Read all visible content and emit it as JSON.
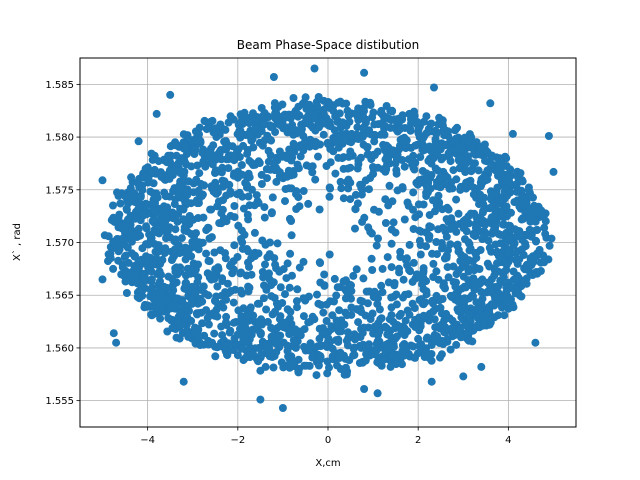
{
  "chart_data": {
    "type": "scatter",
    "title": "Beam Phase-Space distibution",
    "xlabel": "X,cm",
    "ylabel": "X` , rad",
    "xlim": [
      -5.5,
      5.5
    ],
    "ylim": [
      1.5525,
      1.5875
    ],
    "xticks": [
      -4,
      -2,
      0,
      2,
      4
    ],
    "xtick_labels": [
      "−4",
      "−2",
      "0",
      "2",
      "4"
    ],
    "yticks": [
      1.555,
      1.56,
      1.565,
      1.57,
      1.575,
      1.58,
      1.585
    ],
    "ytick_labels": [
      "1.555",
      "1.560",
      "1.565",
      "1.570",
      "1.575",
      "1.580",
      "1.585"
    ],
    "grid": true,
    "marker_color": "#1f77b4",
    "distribution": {
      "x_center": 0.0,
      "x_half_width": 5.0,
      "y_center": 1.5705,
      "y_half_width": 0.0135
    },
    "outliers": [
      {
        "x": 4.9,
        "y": 1.5801
      },
      {
        "x": 5.0,
        "y": 1.5767
      },
      {
        "x": -5.0,
        "y": 1.5759
      },
      {
        "x": -5.0,
        "y": 1.5665
      },
      {
        "x": -4.75,
        "y": 1.5614
      },
      {
        "x": -4.7,
        "y": 1.5605
      },
      {
        "x": -3.2,
        "y": 1.5568
      },
      {
        "x": -1.5,
        "y": 1.5551
      },
      {
        "x": -1.0,
        "y": 1.5543
      },
      {
        "x": 0.8,
        "y": 1.5561
      },
      {
        "x": 1.1,
        "y": 1.5557
      },
      {
        "x": -1.2,
        "y": 1.5857
      },
      {
        "x": -0.3,
        "y": 1.5865
      },
      {
        "x": 0.8,
        "y": 1.5861
      },
      {
        "x": 2.35,
        "y": 1.5847
      },
      {
        "x": -3.5,
        "y": 1.584
      },
      {
        "x": -3.8,
        "y": 1.5822
      },
      {
        "x": 3.6,
        "y": 1.5832
      },
      {
        "x": 4.1,
        "y": 1.5803
      },
      {
        "x": 3.0,
        "y": 1.5573
      },
      {
        "x": 3.4,
        "y": 1.5582
      },
      {
        "x": -4.2,
        "y": 1.5796
      },
      {
        "x": 4.6,
        "y": 1.5605
      },
      {
        "x": 2.3,
        "y": 1.5568
      }
    ]
  }
}
